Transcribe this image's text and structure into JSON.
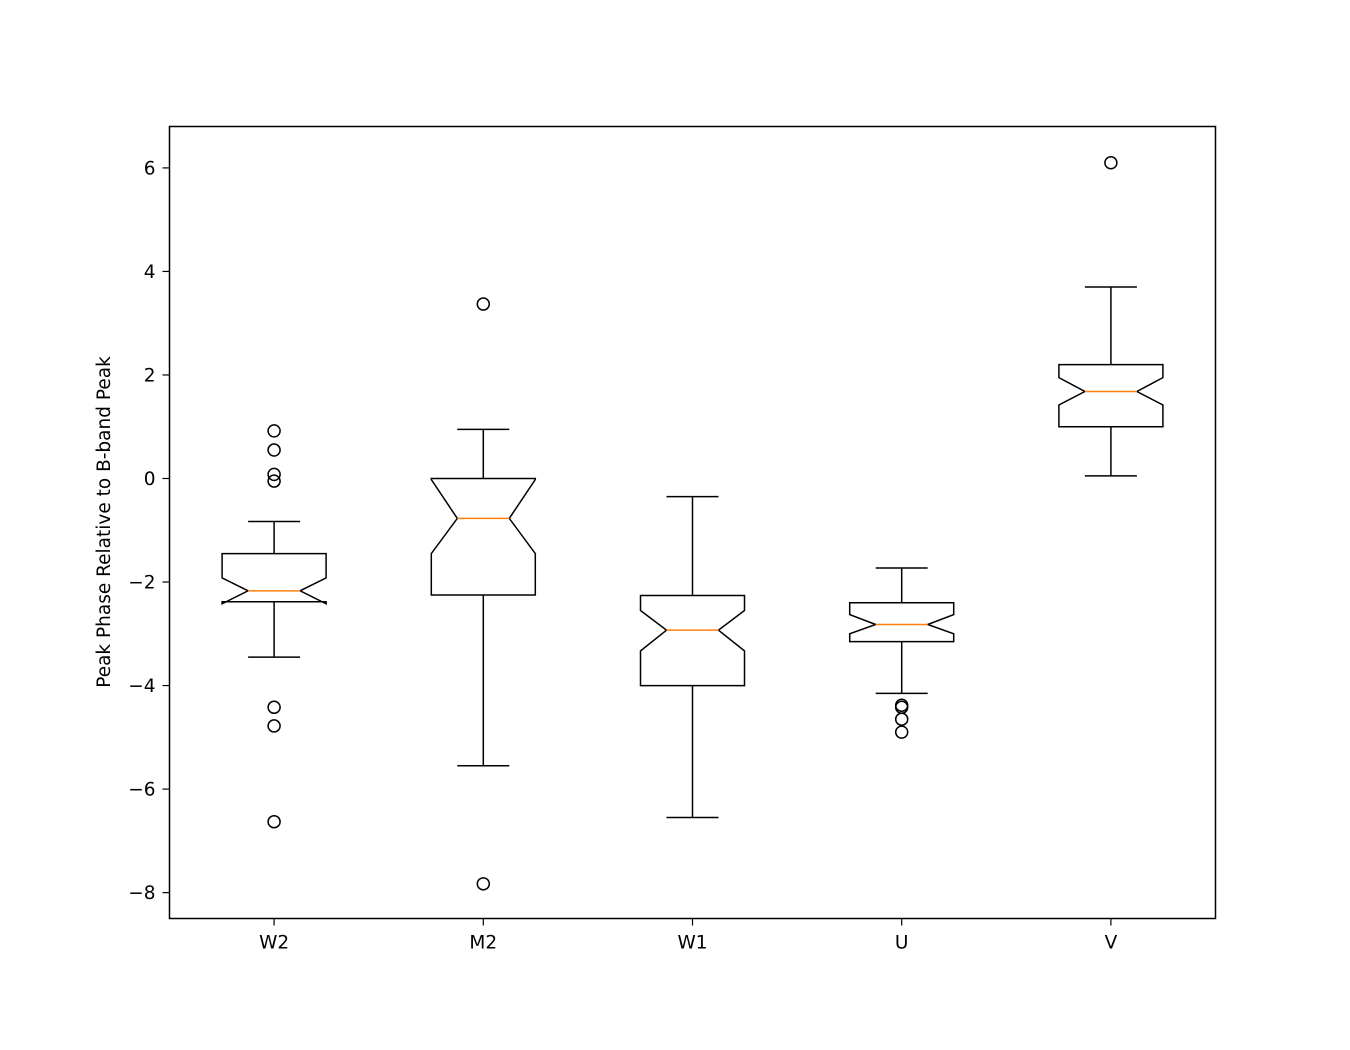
{
  "chart_data": {
    "type": "boxplot",
    "notched": true,
    "title": "",
    "xlabel": "",
    "ylabel": "Peak Phase Relative to B-band Peak",
    "ylim": [
      -8.5,
      6.8
    ],
    "yticks": [
      -8,
      -6,
      -4,
      -2,
      0,
      2,
      4,
      6
    ],
    "ytick_labels": [
      "−8",
      "−6",
      "−4",
      "−2",
      "0",
      "2",
      "4",
      "6"
    ],
    "grid": false,
    "colors": {
      "box": "#000000",
      "median": "#ff7f0e",
      "background": "#ffffff"
    },
    "categories": [
      "W2",
      "M2",
      "W1",
      "U",
      "V"
    ],
    "boxes": [
      {
        "label": "W2",
        "whisker_low": -3.45,
        "q1": -2.38,
        "median": -2.17,
        "q3": -1.45,
        "whisker_high": -0.83,
        "notch_low": -2.42,
        "notch_high": -1.92,
        "outliers": [
          0.92,
          0.55,
          0.08,
          -0.05,
          -4.42,
          -4.78,
          -6.63
        ]
      },
      {
        "label": "M2",
        "whisker_low": -5.55,
        "q1": -2.25,
        "median": -0.77,
        "q3": 0.0,
        "whisker_high": 0.95,
        "notch_low": -1.45,
        "notch_high": -0.02,
        "outliers": [
          3.37,
          -7.83
        ]
      },
      {
        "label": "W1",
        "whisker_low": -6.55,
        "q1": -4.0,
        "median": -2.93,
        "q3": -2.26,
        "whisker_high": -0.35,
        "notch_low": -3.33,
        "notch_high": -2.55,
        "outliers": []
      },
      {
        "label": "U",
        "whisker_low": -4.15,
        "q1": -3.15,
        "median": -2.82,
        "q3": -2.4,
        "whisker_high": -1.73,
        "notch_low": -3.0,
        "notch_high": -2.63,
        "outliers": [
          -4.38,
          -4.42,
          -4.65,
          -4.9
        ]
      },
      {
        "label": "V",
        "whisker_low": 0.05,
        "q1": 1.0,
        "median": 1.68,
        "q3": 2.2,
        "whisker_high": 3.7,
        "notch_low": 1.42,
        "notch_high": 1.95,
        "outliers": [
          6.1
        ]
      }
    ]
  }
}
